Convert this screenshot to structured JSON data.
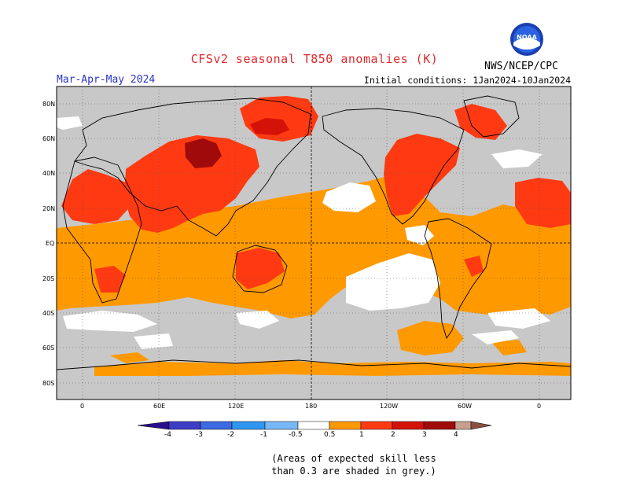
{
  "header": {
    "title": "CFSv2 seasonal T850 anomalies (K)",
    "season": "Mar-Apr-May 2024",
    "initial_conditions": "Initial conditions: 1Jan2024-10Jan2024",
    "agency": "NWS/NCEP/CPC",
    "logo_text": "NOAA",
    "logo_icon": "noaa-logo-icon"
  },
  "map": {
    "projection": "cylindrical",
    "lat_range": [
      -90,
      90
    ],
    "lon_range": [
      -10,
      370
    ],
    "lat_labels": [
      "80N",
      "60N",
      "40N",
      "20N",
      "EQ",
      "20S",
      "40S",
      "60S",
      "80S"
    ],
    "lon_labels": [
      "0",
      "60E",
      "120E",
      "180",
      "120W",
      "60W",
      "0"
    ],
    "grid": "dotted",
    "reference_lines": [
      "equator",
      "dateline"
    ],
    "grey_meaning": "skill < 0.3"
  },
  "colorbar": {
    "ticks": [
      "-4",
      "-3",
      "-2",
      "-1",
      "-0.5",
      "0.5",
      "1",
      "2",
      "3",
      "4"
    ],
    "bins": [
      {
        "range": "< -4",
        "color": "#2a0f8c"
      },
      {
        "range": "-4 to -3",
        "color": "#3d3dc6"
      },
      {
        "range": "-3 to -2",
        "color": "#3c6ae0"
      },
      {
        "range": "-2 to -1",
        "color": "#2f96f0"
      },
      {
        "range": "-1 to -0.5",
        "color": "#78b8f8"
      },
      {
        "range": "-0.5 to 0.5",
        "color": "#ffffff"
      },
      {
        "range": "0.5 to 1",
        "color": "#ff9900"
      },
      {
        "range": "1 to 2",
        "color": "#ff3a12"
      },
      {
        "range": "2 to 3",
        "color": "#d41208"
      },
      {
        "range": "3 to 4",
        "color": "#a00a0a"
      },
      {
        "range": "> 4",
        "color": "#c8a090"
      },
      {
        "range": "end",
        "color": "#8a5040"
      }
    ]
  },
  "colors": {
    "skill_grey": "#c8c8c8",
    "title_red": "#e0282c",
    "season_blue": "#2c33c8"
  },
  "footnote": {
    "line1": "(Areas of expected skill less",
    "line2": "than 0.3 are shaded in grey.)"
  }
}
